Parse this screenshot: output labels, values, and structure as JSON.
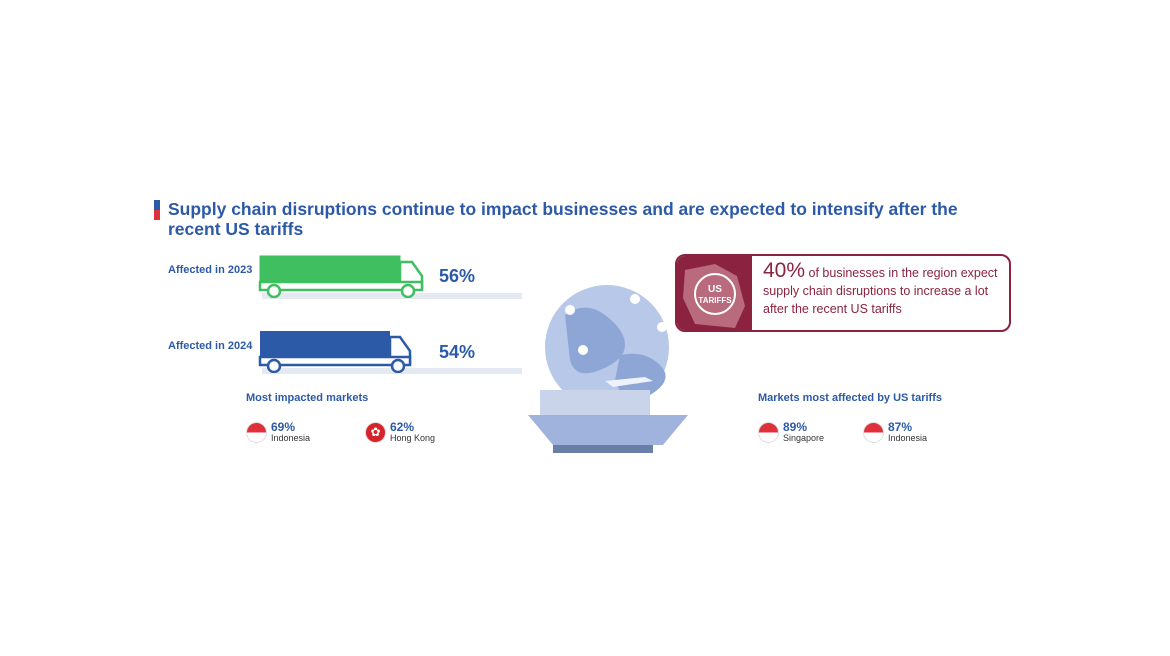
{
  "title": "Supply chain disruptions continue to impact businesses and are expected to intensify after the recent US tariffs",
  "trucks": [
    {
      "label": "Affected in 2023",
      "value": "56%",
      "color": "#3fbf5f"
    },
    {
      "label": "Affected in 2024",
      "value": "54%",
      "color": "#2c5aa6"
    }
  ],
  "most_impacted": {
    "heading": "Most impacted markets",
    "items": [
      {
        "value": "69%",
        "name": "Indonesia",
        "flag": "indonesia-flag"
      },
      {
        "value": "62%",
        "name": "Hong Kong",
        "flag": "hong-kong-flag"
      }
    ]
  },
  "tariff_box": {
    "value": "40%",
    "text": "of businesses in the region expect supply chain disruptions to increase a lot after the recent US tariffs",
    "stamp": "US TARIFFS",
    "color": "#8b2340"
  },
  "tariff_markets": {
    "heading": "Markets most affected by US tariffs",
    "items": [
      {
        "value": "89%",
        "name": "Singapore",
        "flag": "singapore-flag"
      },
      {
        "value": "87%",
        "name": "Indonesia",
        "flag": "indonesia-flag"
      }
    ]
  }
}
